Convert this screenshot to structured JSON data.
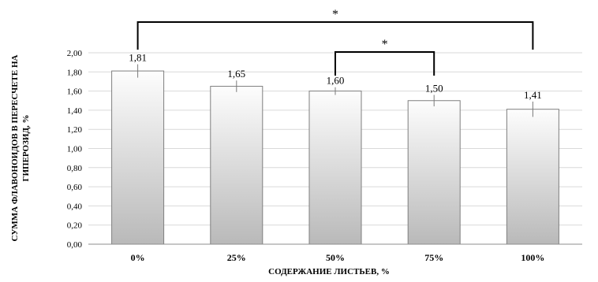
{
  "chart_data": {
    "type": "bar",
    "categories": [
      "0%",
      "25%",
      "50%",
      "75%",
      "100%"
    ],
    "values": [
      1.81,
      1.65,
      1.6,
      1.5,
      1.41
    ],
    "value_labels": [
      "1,81",
      "1,65",
      "1,60",
      "1,50",
      "1,41"
    ],
    "error": [
      0.07,
      0.06,
      0.04,
      0.06,
      0.08
    ],
    "xlabel": "СОДЕРЖАНИЕ ЛИСТЬЕВ, %",
    "ylabel_line1": "СУММА ФЛАВОНОИДОВ В ПЕРЕСЧЕТЕ НА",
    "ylabel_line2": "ГИПЕРОЗИД, %",
    "ylim": [
      0,
      2
    ],
    "yticks": [
      0,
      0.2,
      0.4,
      0.6,
      0.8,
      1.0,
      1.2,
      1.4,
      1.6,
      1.8,
      2.0
    ],
    "ytick_labels": [
      "0,00",
      "0,20",
      "0,40",
      "0,60",
      "0,80",
      "1,00",
      "1,20",
      "1,40",
      "1,60",
      "1,80",
      "2,00"
    ],
    "grid": true,
    "significance": [
      {
        "from": 0,
        "to": 4,
        "label": "*"
      },
      {
        "from": 2,
        "to": 3,
        "label": "*"
      }
    ]
  }
}
